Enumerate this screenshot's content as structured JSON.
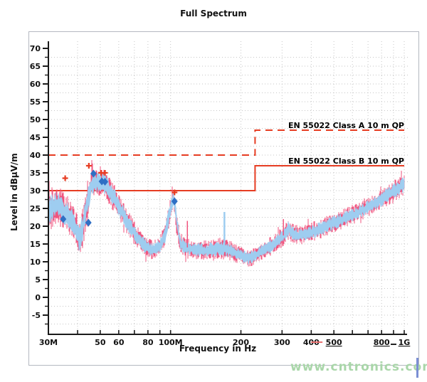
{
  "title": "Full Spectrum",
  "watermark": "www.cntronics.com",
  "colors": {
    "limit_red": "#e63c22",
    "trace_blue": "#9ecdf0",
    "trace_pink": "#f0557f",
    "marker_cross_red": "#e63c22",
    "marker_diamond_blue": "#2f6fc4",
    "grid_gray": "#c6c6c6",
    "axis_black": "#1a1a1a",
    "watermark_green": "#a9d6a9"
  },
  "chart_data": {
    "type": "line",
    "title": "Full Spectrum",
    "xlabel": "Frequency in Hz",
    "ylabel": "Level in dBµV/m",
    "x_scale": "log",
    "x_range_mhz": [
      30,
      1000
    ],
    "y_range": [
      -10,
      70
    ],
    "y_tick_step": 5,
    "y_minor_step": 2.5,
    "grid": "dotted",
    "y_tick_labels": [
      "70",
      "65",
      "60",
      "55",
      "50",
      "45",
      "40",
      "35",
      "30",
      "25",
      "20",
      "15",
      "10",
      "5",
      "0",
      "-5"
    ],
    "x_ticks": [
      {
        "mhz": 30,
        "label": "30M"
      },
      {
        "mhz": 40
      },
      {
        "mhz": 50,
        "label": "50"
      },
      {
        "mhz": 60,
        "label": "60"
      },
      {
        "mhz": 70
      },
      {
        "mhz": 80,
        "label": "80"
      },
      {
        "mhz": 90
      },
      {
        "mhz": 100,
        "label": "100M"
      },
      {
        "mhz": 200,
        "label": "200"
      },
      {
        "mhz": 300,
        "label": "300"
      },
      {
        "mhz": 400,
        "label": "400"
      },
      {
        "mhz": 500,
        "label": "500",
        "underline": true,
        "decor": "red-dash"
      },
      {
        "mhz": 600
      },
      {
        "mhz": 700
      },
      {
        "mhz": 800,
        "label": "800",
        "underline": true
      },
      {
        "mhz": 900
      },
      {
        "mhz": 1000,
        "label": "1G",
        "underline": true,
        "decor": "dark-dash"
      }
    ],
    "limits": [
      {
        "name": "EN 55022 Class A 10 m QP",
        "style": "dashed",
        "points_mhz_db": [
          [
            30,
            40
          ],
          [
            230,
            40
          ],
          [
            230,
            47
          ],
          [
            1000,
            47
          ]
        ]
      },
      {
        "name": "EN 55022 Class B 10 m QP",
        "style": "solid",
        "points_mhz_db": [
          [
            30,
            30
          ],
          [
            230,
            30
          ],
          [
            230,
            37
          ],
          [
            1000,
            37
          ]
        ]
      }
    ],
    "envelope_mhz_center_half": [
      [
        30,
        24.5,
        4.5
      ],
      [
        33,
        26,
        4
      ],
      [
        36,
        23.5,
        4
      ],
      [
        39,
        20,
        4.2
      ],
      [
        41,
        16,
        4.5
      ],
      [
        42.5,
        21,
        4.5
      ],
      [
        44,
        27,
        4
      ],
      [
        46,
        31.5,
        3.2
      ],
      [
        48,
        32.5,
        3
      ],
      [
        53,
        31.8,
        3
      ],
      [
        56,
        29,
        3
      ],
      [
        60,
        25.5,
        3
      ],
      [
        65,
        21.5,
        2.6
      ],
      [
        70,
        18,
        2.4
      ],
      [
        75,
        15.5,
        2.2
      ],
      [
        80,
        13.8,
        2
      ],
      [
        85,
        13.2,
        2
      ],
      [
        90,
        14.5,
        2
      ],
      [
        95,
        17.5,
        2.4
      ],
      [
        99,
        24,
        2.4
      ],
      [
        103,
        28,
        1.8
      ],
      [
        106,
        22,
        2.4
      ],
      [
        110,
        15,
        2.2
      ],
      [
        120,
        13.8,
        2
      ],
      [
        140,
        13.2,
        2
      ],
      [
        165,
        13.8,
        2.2
      ],
      [
        185,
        12.8,
        2
      ],
      [
        200,
        11.8,
        1.9
      ],
      [
        215,
        10.8,
        1.8
      ],
      [
        230,
        11.8,
        1.8
      ],
      [
        250,
        13.2,
        1.8
      ],
      [
        270,
        14.5,
        1.9
      ],
      [
        290,
        16,
        2
      ],
      [
        305,
        17.5,
        2.2
      ],
      [
        320,
        19.3,
        2.2
      ],
      [
        335,
        18,
        2.2
      ],
      [
        350,
        17.3,
        2
      ],
      [
        380,
        17.8,
        2
      ],
      [
        420,
        18.8,
        2
      ],
      [
        460,
        19.8,
        2
      ],
      [
        500,
        21,
        2
      ],
      [
        560,
        22.3,
        2
      ],
      [
        640,
        24,
        2
      ],
      [
        720,
        25.8,
        2
      ],
      [
        800,
        27.5,
        2
      ],
      [
        900,
        29.8,
        2.2
      ],
      [
        1000,
        31.8,
        2.4
      ]
    ],
    "series": [
      {
        "name": "peak-trace",
        "color": "#9ecdf0",
        "style": "noisy-band"
      },
      {
        "name": "qp-trace",
        "color": "#f0557f",
        "style": "noisy-fringe"
      }
    ],
    "spikes_mhz_db": [
      {
        "mhz": 118,
        "db": 21.5,
        "color": "pink"
      },
      {
        "mhz": 170,
        "db": 24,
        "color": "blue"
      },
      {
        "mhz": 304,
        "db": 22,
        "color": "pink"
      }
    ],
    "markers": {
      "crosses": {
        "color": "#e63c22",
        "points_mhz_db": [
          [
            35.4,
            33.5
          ],
          [
            44.7,
            37
          ],
          [
            50.4,
            35
          ],
          [
            52.4,
            35
          ],
          [
            104,
            29.5
          ]
        ]
      },
      "diamonds": {
        "color": "#2f6fc4",
        "points_mhz_db": [
          [
            34.7,
            22
          ],
          [
            44.5,
            21
          ],
          [
            46.8,
            34.8
          ],
          [
            50.8,
            32.6
          ],
          [
            52.4,
            32.5
          ],
          [
            104,
            27
          ]
        ]
      }
    }
  }
}
